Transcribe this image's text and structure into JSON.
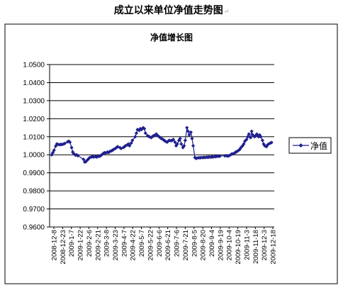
{
  "page": {
    "title": "成立以来单位净值走势图",
    "return_mark": "↵"
  },
  "chart_data": {
    "type": "line",
    "title": "净值增长图",
    "xlabel": "",
    "ylabel": "",
    "ylim": [
      0.96,
      1.05
    ],
    "y_ticks": [
      "0.9600",
      "0.9700",
      "0.9800",
      "0.9900",
      "1.0000",
      "1.0100",
      "1.0200",
      "1.0300",
      "1.0400",
      "1.0500"
    ],
    "x_tick_labels": [
      "2008-12-8",
      "2008-12-23",
      "2009-1-7",
      "2009-1-22",
      "2009-2-6",
      "2009-2-21",
      "2009-3-8",
      "2009-3-23",
      "2009-4-7",
      "2009-4-22",
      "2009-5-7",
      "2009-5-22",
      "2009-6-6",
      "2009-6-21",
      "2009-7-6",
      "2009-7-21",
      "2009-8-5",
      "2009-8-20",
      "2009-9-4",
      "2009-9-19",
      "2009-10-4",
      "2009-10-19",
      "2009-11-3",
      "2009-11-18",
      "2009-12-3",
      "2009-12-18"
    ],
    "grid": true,
    "legend_position": "right",
    "series": [
      {
        "name": "净值",
        "color": "#1f1f8f",
        "points": [
          [
            "2008-12-08",
            1.0
          ],
          [
            "2008-12-10",
            1.0012
          ],
          [
            "2008-12-12",
            1.0025
          ],
          [
            "2008-12-15",
            1.0048
          ],
          [
            "2008-12-17",
            1.006
          ],
          [
            "2008-12-19",
            1.0058
          ],
          [
            "2008-12-22",
            1.0056
          ],
          [
            "2008-12-24",
            1.0058
          ],
          [
            "2008-12-26",
            1.0057
          ],
          [
            "2008-12-29",
            1.006
          ],
          [
            "2008-12-31",
            1.0063
          ],
          [
            "2009-01-05",
            1.0072
          ],
          [
            "2009-01-07",
            1.0075
          ],
          [
            "2009-01-09",
            1.007
          ],
          [
            "2009-01-12",
            1.004
          ],
          [
            "2009-01-14",
            1.0015
          ],
          [
            "2009-01-16",
            1.0005
          ],
          [
            "2009-01-19",
            0.9998
          ],
          [
            "2009-01-21",
            1.0
          ],
          [
            "2009-01-23",
            0.9995
          ],
          [
            "2009-02-02",
            0.9975
          ],
          [
            "2009-02-04",
            0.996
          ],
          [
            "2009-02-06",
            0.9962
          ],
          [
            "2009-02-09",
            0.9972
          ],
          [
            "2009-02-11",
            0.9978
          ],
          [
            "2009-02-13",
            0.9985
          ],
          [
            "2009-02-16",
            0.9988
          ],
          [
            "2009-02-18",
            0.999
          ],
          [
            "2009-02-20",
            0.9988
          ],
          [
            "2009-02-23",
            0.999
          ],
          [
            "2009-02-25",
            0.9988
          ],
          [
            "2009-02-27",
            0.999
          ],
          [
            "2009-03-02",
            0.9992
          ],
          [
            "2009-03-04",
            0.9995
          ],
          [
            "2009-03-06",
            1.0
          ],
          [
            "2009-03-09",
            1.0008
          ],
          [
            "2009-03-11",
            1.0012
          ],
          [
            "2009-03-13",
            1.001
          ],
          [
            "2009-03-16",
            1.0015
          ],
          [
            "2009-03-18",
            1.0012
          ],
          [
            "2009-03-20",
            1.0018
          ],
          [
            "2009-03-23",
            1.0022
          ],
          [
            "2009-03-25",
            1.0025
          ],
          [
            "2009-03-27",
            1.003
          ],
          [
            "2009-03-30",
            1.0035
          ],
          [
            "2009-04-01",
            1.004
          ],
          [
            "2009-04-03",
            1.0045
          ],
          [
            "2009-04-07",
            1.004
          ],
          [
            "2009-04-09",
            1.0035
          ],
          [
            "2009-04-13",
            1.004
          ],
          [
            "2009-04-15",
            1.0045
          ],
          [
            "2009-04-17",
            1.005
          ],
          [
            "2009-04-20",
            1.0055
          ],
          [
            "2009-04-22",
            1.006
          ],
          [
            "2009-04-24",
            1.005
          ],
          [
            "2009-04-27",
            1.0065
          ],
          [
            "2009-04-29",
            1.008
          ],
          [
            "2009-05-04",
            1.01
          ],
          [
            "2009-05-06",
            1.012
          ],
          [
            "2009-05-08",
            1.014
          ],
          [
            "2009-05-11",
            1.0135
          ],
          [
            "2009-05-13",
            1.0145
          ],
          [
            "2009-05-15",
            1.014
          ],
          [
            "2009-05-18",
            1.015
          ],
          [
            "2009-05-20",
            1.0145
          ],
          [
            "2009-05-22",
            1.012
          ],
          [
            "2009-05-26",
            1.0105
          ],
          [
            "2009-05-29",
            1.01
          ],
          [
            "2009-06-01",
            1.0095
          ],
          [
            "2009-06-03",
            1.01
          ],
          [
            "2009-06-05",
            1.0105
          ],
          [
            "2009-06-08",
            1.011
          ],
          [
            "2009-06-10",
            1.0115
          ],
          [
            "2009-06-12",
            1.0108
          ],
          [
            "2009-06-15",
            1.01
          ],
          [
            "2009-06-17",
            1.0095
          ],
          [
            "2009-06-19",
            1.009
          ],
          [
            "2009-06-22",
            1.0085
          ],
          [
            "2009-06-24",
            1.008
          ],
          [
            "2009-06-26",
            1.0075
          ],
          [
            "2009-06-29",
            1.007
          ],
          [
            "2009-07-01",
            1.0075
          ],
          [
            "2009-07-03",
            1.008
          ],
          [
            "2009-07-06",
            1.0078
          ],
          [
            "2009-07-08",
            1.008
          ],
          [
            "2009-07-10",
            1.0085
          ],
          [
            "2009-07-13",
            1.007
          ],
          [
            "2009-07-15",
            1.005
          ],
          [
            "2009-07-17",
            1.006
          ],
          [
            "2009-07-20",
            1.008
          ],
          [
            "2009-07-22",
            1.009
          ],
          [
            "2009-07-24",
            1.006
          ],
          [
            "2009-07-27",
            1.004
          ],
          [
            "2009-07-29",
            1.005
          ],
          [
            "2009-07-31",
            1.008
          ],
          [
            "2009-08-03",
            1.015
          ],
          [
            "2009-08-05",
            1.013
          ],
          [
            "2009-08-07",
            1.011
          ],
          [
            "2009-08-10",
            1.0125
          ],
          [
            "2009-08-12",
            1.009
          ],
          [
            "2009-08-14",
            1.005
          ],
          [
            "2009-08-17",
            0.9985
          ],
          [
            "2009-08-19",
            0.998
          ],
          [
            "2009-08-21",
            0.9982
          ],
          [
            "2009-08-24",
            0.9984
          ],
          [
            "2009-08-26",
            0.9983
          ],
          [
            "2009-08-28",
            0.9985
          ],
          [
            "2009-08-31",
            0.9984
          ],
          [
            "2009-09-02",
            0.9986
          ],
          [
            "2009-09-04",
            0.9985
          ],
          [
            "2009-09-07",
            0.9987
          ],
          [
            "2009-09-09",
            0.9986
          ],
          [
            "2009-09-11",
            0.9988
          ],
          [
            "2009-09-14",
            0.9987
          ],
          [
            "2009-09-16",
            0.9989
          ],
          [
            "2009-09-18",
            0.9988
          ],
          [
            "2009-09-21",
            0.999
          ],
          [
            "2009-09-23",
            0.999
          ],
          [
            "2009-09-25",
            0.9992
          ],
          [
            "2009-09-28",
            0.9991
          ],
          [
            "2009-09-30",
            0.9993
          ],
          [
            "2009-10-09",
            0.9994
          ],
          [
            "2009-10-12",
            0.9995
          ],
          [
            "2009-10-14",
            0.9993
          ],
          [
            "2009-10-16",
            0.9995
          ],
          [
            "2009-10-19",
            1.0
          ],
          [
            "2009-10-21",
            1.0005
          ],
          [
            "2009-10-23",
            1.0005
          ],
          [
            "2009-10-26",
            1.001
          ],
          [
            "2009-10-28",
            1.0015
          ],
          [
            "2009-10-30",
            1.0018
          ],
          [
            "2009-11-02",
            1.0025
          ],
          [
            "2009-11-04",
            1.003
          ],
          [
            "2009-11-06",
            1.004
          ],
          [
            "2009-11-09",
            1.005
          ],
          [
            "2009-11-11",
            1.006
          ],
          [
            "2009-11-13",
            1.0075
          ],
          [
            "2009-11-16",
            1.0085
          ],
          [
            "2009-11-18",
            1.01
          ],
          [
            "2009-11-20",
            1.0115
          ],
          [
            "2009-11-23",
            1.0095
          ],
          [
            "2009-11-25",
            1.013
          ],
          [
            "2009-11-27",
            1.011
          ],
          [
            "2009-11-30",
            1.01
          ],
          [
            "2009-12-02",
            1.0105
          ],
          [
            "2009-12-04",
            1.0115
          ],
          [
            "2009-12-07",
            1.01
          ],
          [
            "2009-12-09",
            1.011
          ],
          [
            "2009-12-11",
            1.01
          ],
          [
            "2009-12-14",
            1.008
          ],
          [
            "2009-12-16",
            1.006
          ],
          [
            "2009-12-18",
            1.005
          ],
          [
            "2009-12-21",
            1.0045
          ],
          [
            "2009-12-23",
            1.0055
          ],
          [
            "2009-12-25",
            1.006
          ],
          [
            "2009-12-28",
            1.0065
          ],
          [
            "2009-12-30",
            1.0068
          ]
        ]
      }
    ]
  }
}
